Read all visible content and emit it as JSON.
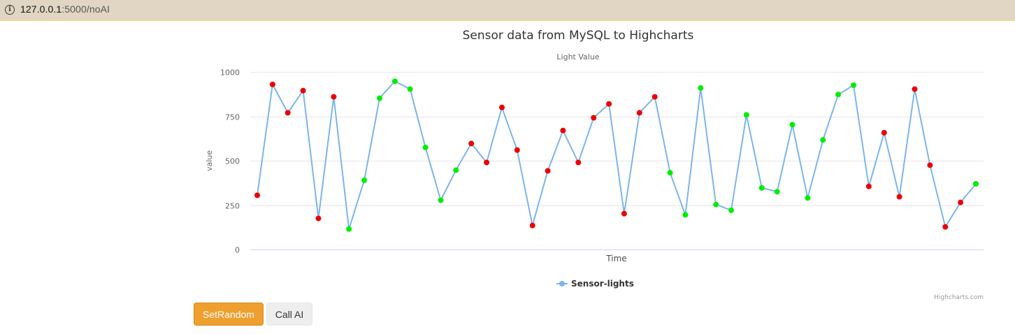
{
  "browser": {
    "url_host": "127.0.0.1",
    "url_rest": ":5000/noAI"
  },
  "chart_data": {
    "type": "line",
    "title": "Sensor data from MySQL to Highcharts",
    "subtitle": "Light Value",
    "xlabel": "Time",
    "ylabel": "value",
    "ylim": [
      0,
      1000
    ],
    "yticks": [
      0,
      250,
      500,
      750,
      1000
    ],
    "grid": true,
    "legend_position": "bottom-center",
    "credits": "Highcharts.com",
    "series": [
      {
        "name": "Sensor-lights",
        "line_color": "#7cb5ec",
        "values": [
          305,
          930,
          770,
          895,
          175,
          860,
          115,
          390,
          852,
          948,
          903,
          575,
          277,
          447,
          597,
          490,
          800,
          560,
          135,
          443,
          670,
          490,
          742,
          820,
          202,
          770,
          860,
          432,
          195,
          910,
          253,
          221,
          758,
          347,
          325,
          703,
          290,
          617,
          873,
          925,
          355,
          658,
          297,
          903,
          475,
          127,
          265,
          370
        ],
        "point_colors": [
          "red",
          "red",
          "red",
          "red",
          "red",
          "red",
          "green",
          "green",
          "green",
          "green",
          "green",
          "green",
          "green",
          "green",
          "red",
          "red",
          "red",
          "red",
          "red",
          "red",
          "red",
          "red",
          "red",
          "red",
          "red",
          "red",
          "red",
          "green",
          "green",
          "green",
          "green",
          "green",
          "green",
          "green",
          "green",
          "green",
          "green",
          "green",
          "green",
          "green",
          "red",
          "red",
          "red",
          "red",
          "red",
          "red",
          "red",
          "green"
        ]
      }
    ],
    "colors": {
      "red": "#ee0000",
      "green": "#00ee00"
    }
  },
  "buttons": {
    "set_random": "SetRandom",
    "call_ai": "Call AI"
  }
}
